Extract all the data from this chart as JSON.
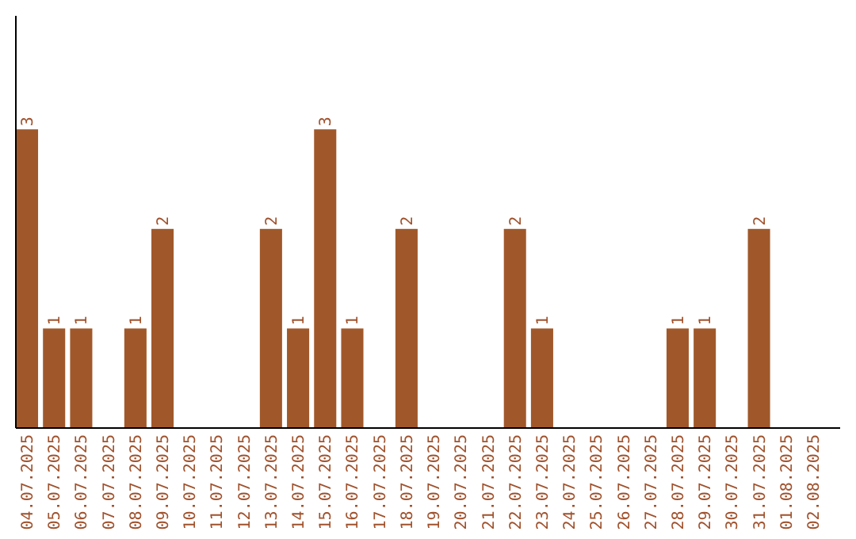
{
  "chart_data": {
    "type": "bar",
    "categories": [
      "04.07.2025",
      "05.07.2025",
      "06.07.2025",
      "07.07.2025",
      "08.07.2025",
      "09.07.2025",
      "10.07.2025",
      "11.07.2025",
      "12.07.2025",
      "13.07.2025",
      "14.07.2025",
      "15.07.2025",
      "16.07.2025",
      "17.07.2025",
      "18.07.2025",
      "19.07.2025",
      "20.07.2025",
      "21.07.2025",
      "22.07.2025",
      "23.07.2025",
      "24.07.2025",
      "25.07.2025",
      "26.07.2025",
      "27.07.2025",
      "28.07.2025",
      "29.07.2025",
      "30.07.2025",
      "31.07.2025",
      "01.08.2025",
      "02.08.2025"
    ],
    "values": [
      3,
      1,
      1,
      0,
      1,
      2,
      0,
      0,
      0,
      2,
      1,
      3,
      1,
      0,
      2,
      0,
      0,
      0,
      2,
      1,
      0,
      0,
      0,
      0,
      1,
      1,
      0,
      2,
      0,
      0
    ],
    "value_labels": [
      "3",
      "1",
      "1",
      null,
      "1",
      "2",
      null,
      null,
      null,
      "2",
      "1",
      "3",
      "1",
      null,
      "2",
      null,
      null,
      null,
      "2",
      "1",
      null,
      null,
      null,
      null,
      "1",
      "1",
      null,
      "2",
      null,
      null
    ],
    "color": "#a0582a",
    "tick_labels": "x"
  }
}
